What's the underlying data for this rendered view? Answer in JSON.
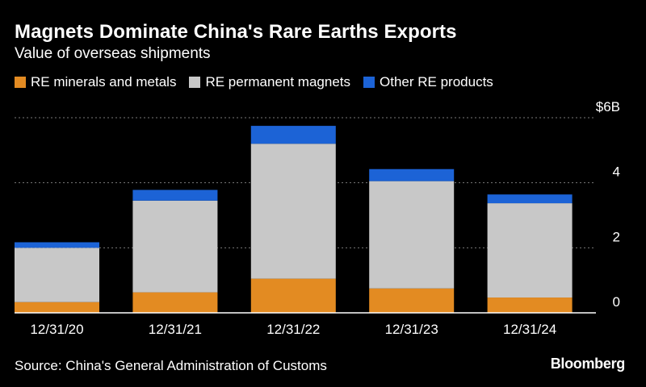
{
  "title": "Magnets Dominate China's Rare Earths Exports",
  "subtitle": "Value of overseas shipments",
  "source": "Source: China's General Administration of Customs",
  "brand": "Bloomberg",
  "chart_data": {
    "type": "bar",
    "stacked": true,
    "categories": [
      "12/31/20",
      "12/31/21",
      "12/31/22",
      "12/31/23",
      "12/31/24"
    ],
    "series": [
      {
        "name": "RE minerals and metals",
        "color": "#e38b22",
        "values": [
          0.33,
          0.63,
          1.05,
          0.75,
          0.47
        ]
      },
      {
        "name": "RE permanent magnets",
        "color": "#c8c8c8",
        "values": [
          1.67,
          2.82,
          4.15,
          3.3,
          2.9
        ]
      },
      {
        "name": "Other RE products",
        "color": "#1c63d6",
        "values": [
          0.17,
          0.33,
          0.55,
          0.37,
          0.27
        ]
      }
    ],
    "ylim": [
      0,
      6
    ],
    "yticks": [
      {
        "value": 0,
        "label": "0"
      },
      {
        "value": 2,
        "label": "2"
      },
      {
        "value": 4,
        "label": "4"
      },
      {
        "value": 6,
        "label": "$6B"
      }
    ],
    "grid": true,
    "gridline_style": "dotted",
    "legend_position": "top-left",
    "axis_side": "right"
  }
}
